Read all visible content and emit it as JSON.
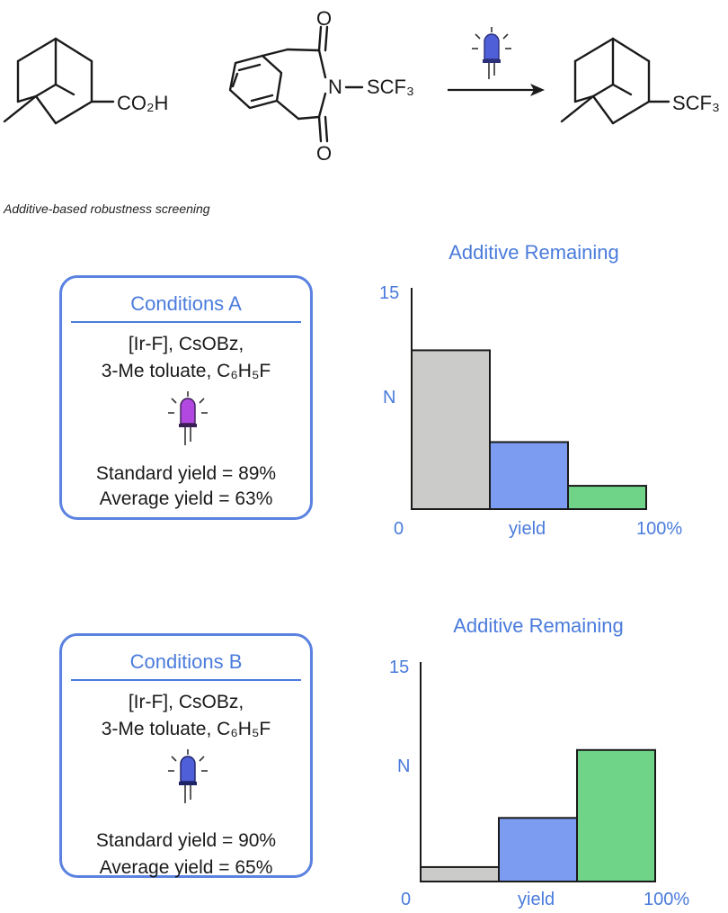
{
  "scheme": {
    "reactant_group": "CO₂H",
    "reagent_nitrogen": "N",
    "reagent_oxygen_top": "O",
    "reagent_oxygen_bottom": "O",
    "reagent_group": "SCF₃",
    "product_group": "SCF₃",
    "light_color": "#4f5fd8"
  },
  "caption": "Additive-based robustness screening",
  "conditions": [
    {
      "title": "Conditions A",
      "line1": "[Ir-F], CsOBz,",
      "line2": "3-Me toluate, C₆H₅F",
      "standard_yield": "Standard yield = 89%",
      "average_yield": "Average yield = 63%",
      "led_color": "#b348e0"
    },
    {
      "title": "Conditions B",
      "line1": "[Ir-F], CsOBz,",
      "line2": "3-Me toluate, C₆H₅F",
      "standard_yield": "Standard yield = 90%",
      "average_yield": "Average yield = 65%",
      "led_color": "#4f5fd8"
    }
  ],
  "colors": {
    "accent": "#4a7bdc",
    "bin_low": "#cbccca",
    "bin_mid": "#7b9cf0",
    "bin_high": "#6fd488"
  },
  "chart_data": [
    {
      "type": "bar",
      "title": "Additive Remaining",
      "ylabel": "N",
      "xlabel": "yield",
      "ytick_top": "15",
      "xtick_left": "0",
      "xtick_right": "100%",
      "ylim": [
        0,
        15
      ],
      "bins": [
        {
          "range": "low",
          "value": 10.9,
          "color": "#cbccca"
        },
        {
          "range": "mid",
          "value": 4.6,
          "color": "#7b9cf0"
        },
        {
          "range": "high",
          "value": 1.6,
          "color": "#6fd488"
        }
      ]
    },
    {
      "type": "bar",
      "title": "Additive Remaining",
      "ylabel": "N",
      "xlabel": "yield",
      "ytick_top": "15",
      "xtick_left": "0",
      "xtick_right": "100%",
      "ylim": [
        0,
        15
      ],
      "bins": [
        {
          "range": "low",
          "value": 1.0,
          "color": "#cbccca"
        },
        {
          "range": "mid",
          "value": 4.4,
          "color": "#7b9cf0"
        },
        {
          "range": "high",
          "value": 9.1,
          "color": "#6fd488"
        }
      ]
    }
  ]
}
